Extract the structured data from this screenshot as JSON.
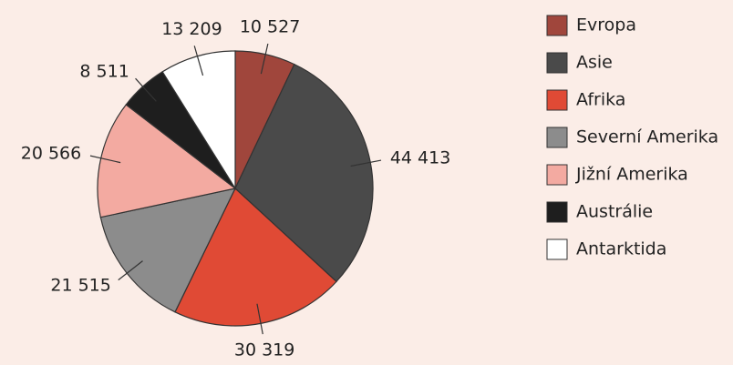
{
  "chart_data": {
    "type": "pie",
    "categories": [
      "Evropa",
      "Asie",
      "Afrika",
      "Severní Amerika",
      "Jižní Amerika",
      "Austrálie",
      "Antarktida"
    ],
    "values": [
      10527,
      44413,
      30319,
      21515,
      20566,
      8511,
      13209
    ],
    "value_labels": [
      "10 527",
      "44 413",
      "30 319",
      "21 515",
      "20 566",
      "8 511",
      "13 209"
    ],
    "colors": [
      "#a0463c",
      "#4a4a4a",
      "#e04a35",
      "#8c8c8c",
      "#f3aaa1",
      "#1e1e1e",
      "#ffffff"
    ],
    "legend": "right"
  }
}
